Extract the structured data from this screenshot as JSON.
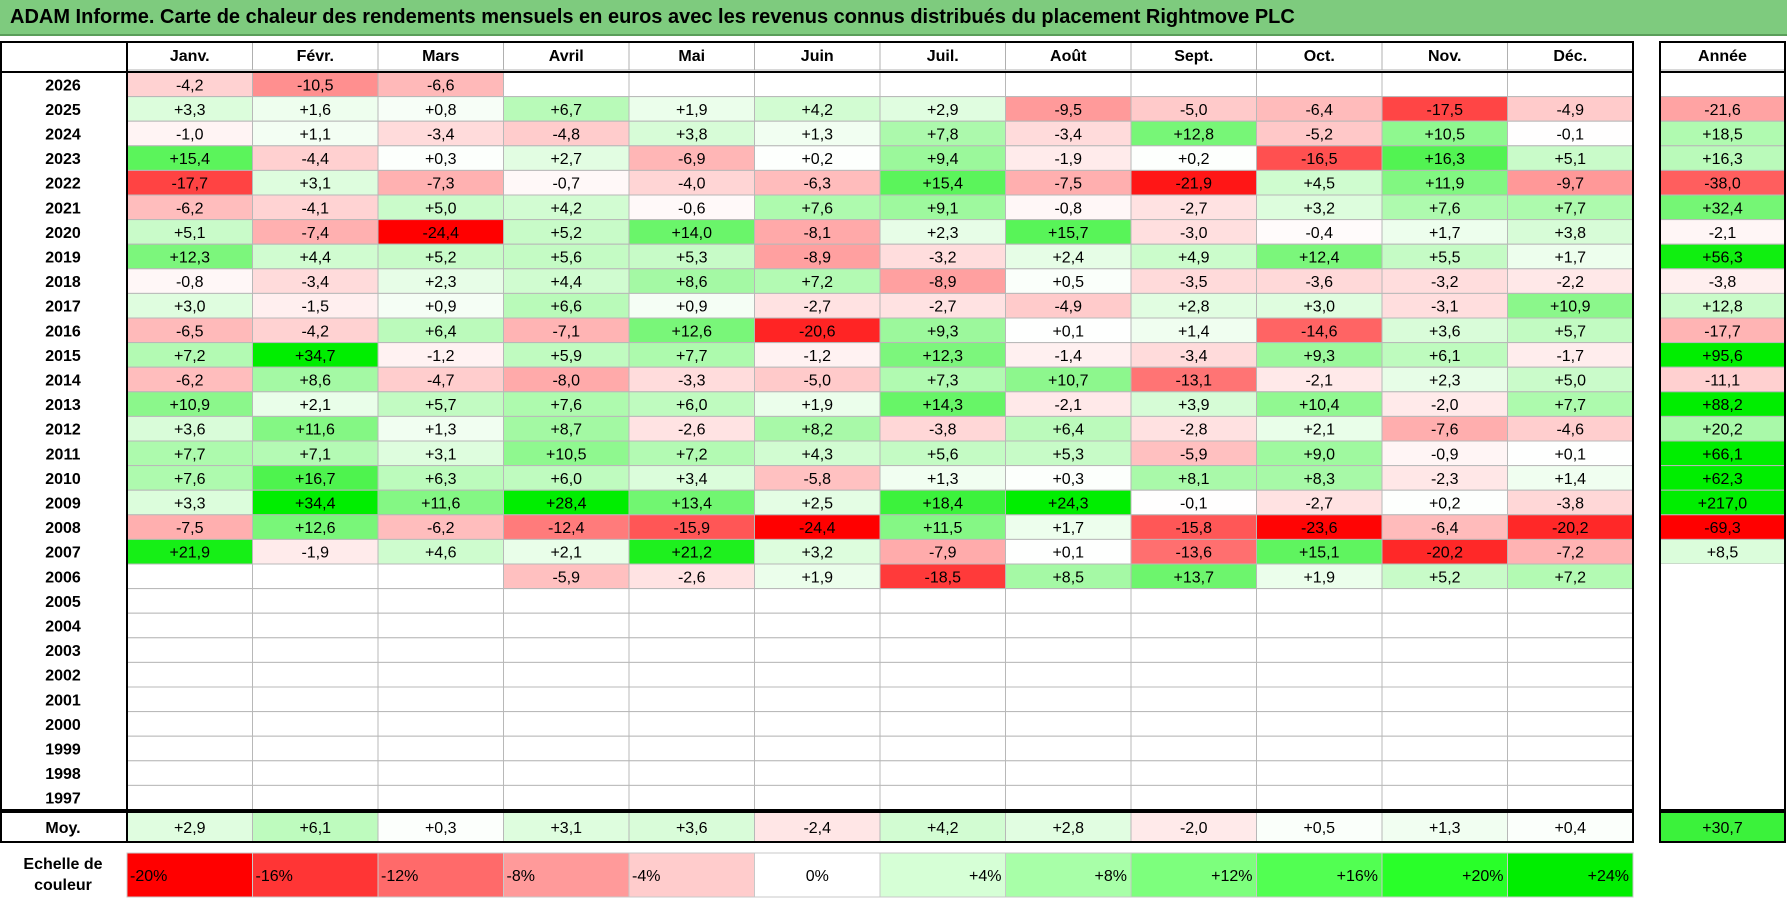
{
  "title": "ADAM Informe. Carte de chaleur des rendements mensuels en euros avec les revenus connus distribués du placement Rightmove PLC",
  "chart_data": {
    "type": "heatmap",
    "months": [
      "Janv.",
      "Févr.",
      "Mars",
      "Avril",
      "Mai",
      "Juin",
      "Juil.",
      "Août",
      "Sept.",
      "Oct.",
      "Nov.",
      "Déc."
    ],
    "year_header": "Année",
    "avg_label": "Moy.",
    "scale_label_line1": "Echelle de",
    "scale_label_line2": "couleur",
    "rows": [
      {
        "year": "2026",
        "values": [
          "-4,2",
          "-10,5",
          "-6,6",
          "",
          "",
          "",
          "",
          "",
          "",
          "",
          "",
          ""
        ],
        "annual": ""
      },
      {
        "year": "2025",
        "values": [
          "+3,3",
          "+1,6",
          "+0,8",
          "+6,7",
          "+1,9",
          "+4,2",
          "+2,9",
          "-9,5",
          "-5,0",
          "-6,4",
          "-17,5",
          "-4,9"
        ],
        "annual": "-21,6"
      },
      {
        "year": "2024",
        "values": [
          "-1,0",
          "+1,1",
          "-3,4",
          "-4,8",
          "+3,8",
          "+1,3",
          "+7,8",
          "-3,4",
          "+12,8",
          "-5,2",
          "+10,5",
          "-0,1"
        ],
        "annual": "+18,5"
      },
      {
        "year": "2023",
        "values": [
          "+15,4",
          "-4,4",
          "+0,3",
          "+2,7",
          "-6,9",
          "+0,2",
          "+9,4",
          "-1,9",
          "+0,2",
          "-16,5",
          "+16,3",
          "+5,1"
        ],
        "annual": "+16,3"
      },
      {
        "year": "2022",
        "values": [
          "-17,7",
          "+3,1",
          "-7,3",
          "-0,7",
          "-4,0",
          "-6,3",
          "+15,4",
          "-7,5",
          "-21,9",
          "+4,5",
          "+11,9",
          "-9,7"
        ],
        "annual": "-38,0"
      },
      {
        "year": "2021",
        "values": [
          "-6,2",
          "-4,1",
          "+5,0",
          "+4,2",
          "-0,6",
          "+7,6",
          "+9,1",
          "-0,8",
          "-2,7",
          "+3,2",
          "+7,6",
          "+7,7"
        ],
        "annual": "+32,4"
      },
      {
        "year": "2020",
        "values": [
          "+5,1",
          "-7,4",
          "-24,4",
          "+5,2",
          "+14,0",
          "-8,1",
          "+2,3",
          "+15,7",
          "-3,0",
          "-0,4",
          "+1,7",
          "+3,8"
        ],
        "annual": "-2,1"
      },
      {
        "year": "2019",
        "values": [
          "+12,3",
          "+4,4",
          "+5,2",
          "+5,6",
          "+5,3",
          "-8,9",
          "-3,2",
          "+2,4",
          "+4,9",
          "+12,4",
          "+5,5",
          "+1,7"
        ],
        "annual": "+56,3"
      },
      {
        "year": "2018",
        "values": [
          "-0,8",
          "-3,4",
          "+2,3",
          "+4,4",
          "+8,6",
          "+7,2",
          "-8,9",
          "+0,5",
          "-3,5",
          "-3,6",
          "-3,2",
          "-2,2"
        ],
        "annual": "-3,8"
      },
      {
        "year": "2017",
        "values": [
          "+3,0",
          "-1,5",
          "+0,9",
          "+6,6",
          "+0,9",
          "-2,7",
          "-2,7",
          "-4,9",
          "+2,8",
          "+3,0",
          "-3,1",
          "+10,9"
        ],
        "annual": "+12,8"
      },
      {
        "year": "2016",
        "values": [
          "-6,5",
          "-4,2",
          "+6,4",
          "-7,1",
          "+12,6",
          "-20,6",
          "+9,3",
          "+0,1",
          "+1,4",
          "-14,6",
          "+3,6",
          "+5,7"
        ],
        "annual": "-17,7"
      },
      {
        "year": "2015",
        "values": [
          "+7,2",
          "+34,7",
          "-1,2",
          "+5,9",
          "+7,7",
          "-1,2",
          "+12,3",
          "-1,4",
          "-3,4",
          "+9,3",
          "+6,1",
          "-1,7"
        ],
        "annual": "+95,6"
      },
      {
        "year": "2014",
        "values": [
          "-6,2",
          "+8,6",
          "-4,7",
          "-8,0",
          "-3,3",
          "-5,0",
          "+7,3",
          "+10,7",
          "-13,1",
          "-2,1",
          "+2,3",
          "+5,0"
        ],
        "annual": "-11,1"
      },
      {
        "year": "2013",
        "values": [
          "+10,9",
          "+2,1",
          "+5,7",
          "+7,6",
          "+6,0",
          "+1,9",
          "+14,3",
          "-2,1",
          "+3,9",
          "+10,4",
          "-2,0",
          "+7,7"
        ],
        "annual": "+88,2"
      },
      {
        "year": "2012",
        "values": [
          "+3,6",
          "+11,6",
          "+1,3",
          "+8,7",
          "-2,6",
          "+8,2",
          "-3,8",
          "+6,4",
          "-2,8",
          "+2,1",
          "-7,6",
          "-4,6"
        ],
        "annual": "+20,2"
      },
      {
        "year": "2011",
        "values": [
          "+7,7",
          "+7,1",
          "+3,1",
          "+10,5",
          "+7,2",
          "+4,3",
          "+5,6",
          "+5,3",
          "-5,9",
          "+9,0",
          "-0,9",
          "+0,1"
        ],
        "annual": "+66,1"
      },
      {
        "year": "2010",
        "values": [
          "+7,6",
          "+16,7",
          "+6,3",
          "+6,0",
          "+3,4",
          "-5,8",
          "+1,3",
          "+0,3",
          "+8,1",
          "+8,3",
          "-2,3",
          "+1,4"
        ],
        "annual": "+62,3"
      },
      {
        "year": "2009",
        "values": [
          "+3,3",
          "+34,4",
          "+11,6",
          "+28,4",
          "+13,4",
          "+2,5",
          "+18,4",
          "+24,3",
          "-0,1",
          "-2,7",
          "+0,2",
          "-3,8"
        ],
        "annual": "+217,0"
      },
      {
        "year": "2008",
        "values": [
          "-7,5",
          "+12,6",
          "-6,2",
          "-12,4",
          "-15,9",
          "-24,4",
          "+11,5",
          "+1,7",
          "-15,8",
          "-23,6",
          "-6,4",
          "-20,2"
        ],
        "annual": "-69,3"
      },
      {
        "year": "2007",
        "values": [
          "+21,9",
          "-1,9",
          "+4,6",
          "+2,1",
          "+21,2",
          "+3,2",
          "-7,9",
          "+0,1",
          "-13,6",
          "+15,1",
          "-20,2",
          "-7,2"
        ],
        "annual": "+8,5"
      },
      {
        "year": "2006",
        "values": [
          "",
          "",
          "",
          "-5,9",
          "-2,6",
          "+1,9",
          "-18,5",
          "+8,5",
          "+13,7",
          "+1,9",
          "+5,2",
          "+7,2"
        ],
        "annual": ""
      },
      {
        "year": "2005",
        "values": [
          "",
          "",
          "",
          "",
          "",
          "",
          "",
          "",
          "",
          "",
          "",
          ""
        ],
        "annual": ""
      },
      {
        "year": "2004",
        "values": [
          "",
          "",
          "",
          "",
          "",
          "",
          "",
          "",
          "",
          "",
          "",
          ""
        ],
        "annual": ""
      },
      {
        "year": "2003",
        "values": [
          "",
          "",
          "",
          "",
          "",
          "",
          "",
          "",
          "",
          "",
          "",
          ""
        ],
        "annual": ""
      },
      {
        "year": "2002",
        "values": [
          "",
          "",
          "",
          "",
          "",
          "",
          "",
          "",
          "",
          "",
          "",
          ""
        ],
        "annual": ""
      },
      {
        "year": "2001",
        "values": [
          "",
          "",
          "",
          "",
          "",
          "",
          "",
          "",
          "",
          "",
          "",
          ""
        ],
        "annual": ""
      },
      {
        "year": "2000",
        "values": [
          "",
          "",
          "",
          "",
          "",
          "",
          "",
          "",
          "",
          "",
          "",
          ""
        ],
        "annual": ""
      },
      {
        "year": "1999",
        "values": [
          "",
          "",
          "",
          "",
          "",
          "",
          "",
          "",
          "",
          "",
          "",
          ""
        ],
        "annual": ""
      },
      {
        "year": "1998",
        "values": [
          "",
          "",
          "",
          "",
          "",
          "",
          "",
          "",
          "",
          "",
          "",
          ""
        ],
        "annual": ""
      },
      {
        "year": "1997",
        "values": [
          "",
          "",
          "",
          "",
          "",
          "",
          "",
          "",
          "",
          "",
          "",
          ""
        ],
        "annual": ""
      }
    ],
    "averages": [
      "+2,9",
      "+6,1",
      "+0,3",
      "+3,1",
      "+3,6",
      "-2,4",
      "+4,2",
      "+2,8",
      "-2,0",
      "+0,5",
      "+1,3",
      "+0,4"
    ],
    "average_annual": "+30,7",
    "scale": [
      {
        "label": "-20%",
        "color": "#ff0000"
      },
      {
        "label": "-16%",
        "color": "#ff3535"
      },
      {
        "label": "-12%",
        "color": "#ff6a6a"
      },
      {
        "label": "-8%",
        "color": "#ff9a9a"
      },
      {
        "label": "-4%",
        "color": "#ffcccc"
      },
      {
        "label": "0%",
        "color": "#ffffff"
      },
      {
        "label": "+4%",
        "color": "#d6ffd6"
      },
      {
        "label": "+8%",
        "color": "#a8ffa8"
      },
      {
        "label": "+12%",
        "color": "#7dff7d"
      },
      {
        "label": "+16%",
        "color": "#52ff52"
      },
      {
        "label": "+20%",
        "color": "#29ff29"
      },
      {
        "label": "+24%",
        "color": "#00ee00"
      }
    ]
  }
}
